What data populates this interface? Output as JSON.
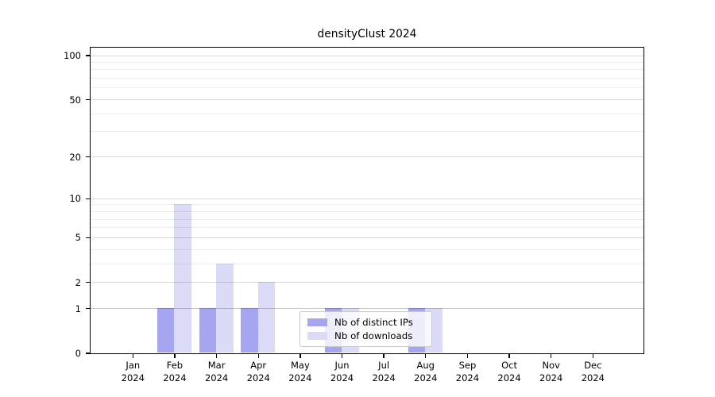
{
  "title": "densityClust 2024",
  "colors": {
    "ips": "#a6a6f0",
    "downloads": "#dbdbf8",
    "grid_minor": "rgba(0,0,0,0.07)",
    "grid_major": "rgba(0,0,0,0.15)",
    "grid_unit": "rgba(0,0,0,0.22)",
    "axis": "#000000",
    "background": "#ffffff"
  },
  "legend": {
    "items": [
      {
        "label": "Nb of distinct IPs",
        "color_key": "ips"
      },
      {
        "label": "Nb of downloads",
        "color_key": "downloads"
      }
    ]
  },
  "chart_data": {
    "type": "bar",
    "title": "densityClust 2024",
    "scale": "log1p",
    "categories": [
      "Jan",
      "Feb",
      "Mar",
      "Apr",
      "May",
      "Jun",
      "Jul",
      "Aug",
      "Sep",
      "Oct",
      "Nov",
      "Dec"
    ],
    "year": "2024",
    "series": [
      {
        "name": "Nb of distinct IPs",
        "values": [
          0,
          1,
          1,
          1,
          0,
          1,
          0,
          1,
          0,
          0,
          0,
          0
        ]
      },
      {
        "name": "Nb of downloads",
        "values": [
          0,
          9,
          3,
          2,
          0,
          1,
          0,
          1,
          0,
          0,
          0,
          0
        ]
      }
    ],
    "y_ticks": [
      0,
      1,
      2,
      5,
      10,
      20,
      50,
      100
    ],
    "y_minor_ticks": [
      3,
      4,
      6,
      7,
      8,
      9,
      30,
      40,
      60,
      70,
      80,
      90
    ],
    "ylim": [
      0,
      100
    ],
    "xlabel": "",
    "ylabel": "",
    "grid": true,
    "legend_position": "lower-center"
  }
}
